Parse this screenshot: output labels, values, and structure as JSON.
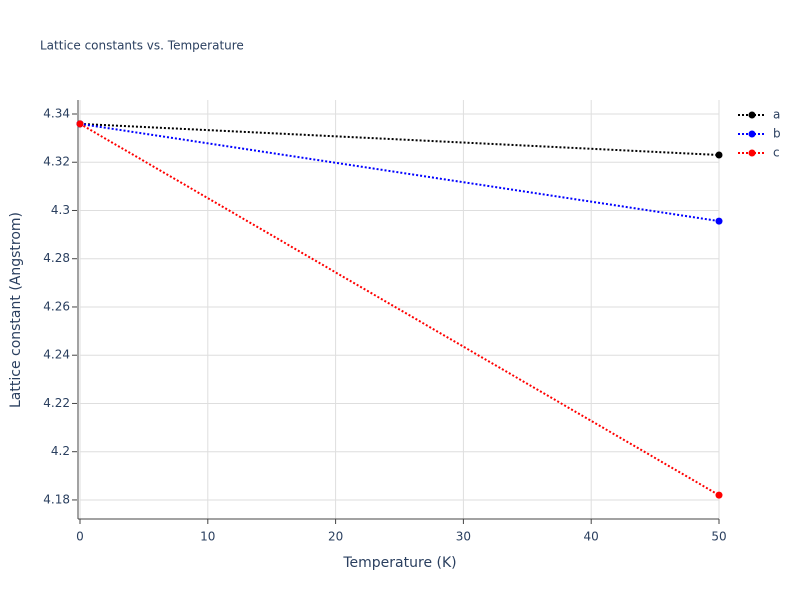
{
  "chart_data": {
    "type": "line",
    "title": "Lattice constants vs. Temperature",
    "xlabel": "Temperature (K)",
    "ylabel": "Lattice constant (Angstrom)",
    "x": [
      0,
      50
    ],
    "series": [
      {
        "name": "a",
        "color": "#000000",
        "values": [
          4.3359,
          4.323
        ]
      },
      {
        "name": "b",
        "color": "#0000ff",
        "values": [
          4.3359,
          4.2956
        ]
      },
      {
        "name": "c",
        "color": "#ff0000",
        "values": [
          4.3359,
          4.182
        ]
      }
    ],
    "xlim": [
      0,
      50
    ],
    "xticks": [
      0,
      10,
      20,
      30,
      40,
      50
    ],
    "ylim": [
      4.1721,
      4.3458
    ],
    "yticks": [
      4.18,
      4.2,
      4.22,
      4.24,
      4.26,
      4.28,
      4.3,
      4.32,
      4.34
    ],
    "grid": true,
    "legend": "right"
  }
}
